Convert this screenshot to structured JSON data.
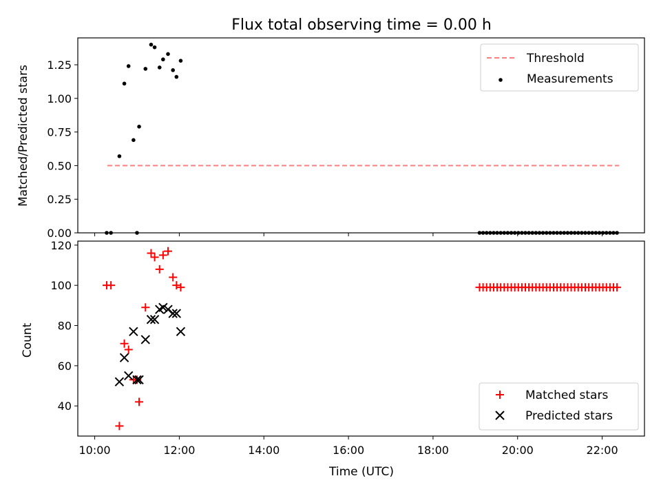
{
  "figure": {
    "title": "Flux total observing time = 0.00 h"
  },
  "chart_data": [
    {
      "type": "scatter",
      "panel": "top",
      "ylabel": "Matched/Predicted stars",
      "xlabel": "",
      "xlim": [
        "09:36",
        "23:00"
      ],
      "ylim": [
        0,
        1.45
      ],
      "yticks": [
        0.0,
        0.25,
        0.5,
        0.75,
        1.0,
        1.25
      ],
      "ytick_labels": [
        "0.00",
        "0.25",
        "0.50",
        "0.75",
        "1.00",
        "1.25"
      ],
      "legend_position": "upper-right",
      "threshold": {
        "name": "Threshold",
        "color": "#ff7f7f",
        "style": "dashed",
        "value": 0.5,
        "x_range": [
          "10:18",
          "22:24"
        ]
      },
      "measurements": {
        "name": "Measurements",
        "color": "#000000",
        "points": [
          {
            "x": "10:17",
            "y": 0.0
          },
          {
            "x": "10:23",
            "y": 0.0
          },
          {
            "x": "10:35",
            "y": 0.57
          },
          {
            "x": "10:42",
            "y": 1.11
          },
          {
            "x": "10:48",
            "y": 1.24
          },
          {
            "x": "10:55",
            "y": 0.69
          },
          {
            "x": "11:00",
            "y": 0.0
          },
          {
            "x": "11:03",
            "y": 0.79
          },
          {
            "x": "11:12",
            "y": 1.22
          },
          {
            "x": "11:20",
            "y": 1.4
          },
          {
            "x": "11:25",
            "y": 1.38
          },
          {
            "x": "11:32",
            "y": 1.23
          },
          {
            "x": "11:37",
            "y": 1.29
          },
          {
            "x": "11:44",
            "y": 1.33
          },
          {
            "x": "11:51",
            "y": 1.21
          },
          {
            "x": "11:56",
            "y": 1.16
          },
          {
            "x": "12:02",
            "y": 1.28
          }
        ],
        "zeros_span": {
          "start": "19:06",
          "end": "22:24",
          "step_minutes": 5,
          "y": 0.0
        }
      }
    },
    {
      "type": "scatter",
      "panel": "bottom",
      "ylabel": "Count",
      "xlabel": "Time (UTC)",
      "xlim": [
        "09:36",
        "23:00"
      ],
      "ylim": [
        25,
        122
      ],
      "yticks": [
        40,
        60,
        80,
        100,
        120
      ],
      "xticks": [
        "10:00",
        "12:00",
        "14:00",
        "16:00",
        "18:00",
        "20:00",
        "22:00"
      ],
      "legend_position": "lower-right",
      "series": [
        {
          "name": "Matched stars",
          "marker": "plus",
          "color": "#ff0000",
          "points": [
            {
              "x": "10:17",
              "y": 100
            },
            {
              "x": "10:23",
              "y": 100
            },
            {
              "x": "10:35",
              "y": 30
            },
            {
              "x": "10:42",
              "y": 71
            },
            {
              "x": "10:48",
              "y": 68
            },
            {
              "x": "10:55",
              "y": 53
            },
            {
              "x": "11:00",
              "y": 53
            },
            {
              "x": "11:03",
              "y": 42
            },
            {
              "x": "11:12",
              "y": 89
            },
            {
              "x": "11:20",
              "y": 116
            },
            {
              "x": "11:25",
              "y": 114
            },
            {
              "x": "11:32",
              "y": 108
            },
            {
              "x": "11:37",
              "y": 115
            },
            {
              "x": "11:44",
              "y": 117
            },
            {
              "x": "11:51",
              "y": 104
            },
            {
              "x": "11:56",
              "y": 100
            },
            {
              "x": "12:02",
              "y": 99
            }
          ],
          "flat_span": {
            "start": "19:06",
            "end": "22:24",
            "step_minutes": 5,
            "y": 99
          }
        },
        {
          "name": "Predicted stars",
          "marker": "x",
          "color": "#000000",
          "points": [
            {
              "x": "10:35",
              "y": 52
            },
            {
              "x": "10:42",
              "y": 64
            },
            {
              "x": "10:48",
              "y": 55
            },
            {
              "x": "10:55",
              "y": 77
            },
            {
              "x": "11:00",
              "y": 53
            },
            {
              "x": "11:03",
              "y": 53
            },
            {
              "x": "11:12",
              "y": 73
            },
            {
              "x": "11:20",
              "y": 83
            },
            {
              "x": "11:25",
              "y": 83
            },
            {
              "x": "11:32",
              "y": 88
            },
            {
              "x": "11:37",
              "y": 89
            },
            {
              "x": "11:44",
              "y": 88
            },
            {
              "x": "11:51",
              "y": 86
            },
            {
              "x": "11:56",
              "y": 86
            },
            {
              "x": "12:02",
              "y": 77
            }
          ]
        }
      ]
    }
  ]
}
